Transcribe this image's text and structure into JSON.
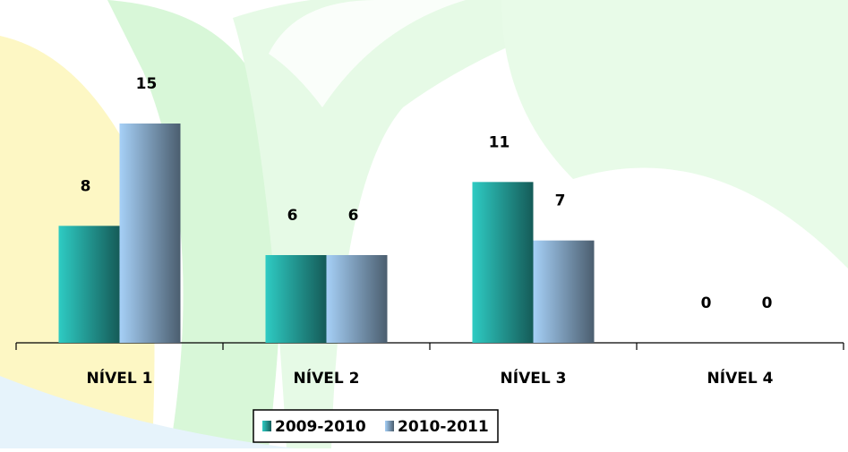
{
  "chart_data": {
    "type": "bar",
    "categories": [
      "NÍVEL 1",
      "NÍVEL 2",
      "NÍVEL 3",
      "NÍVEL 4"
    ],
    "series": [
      {
        "name": "2009-2010",
        "color": "#2ecbc3",
        "values": [
          8,
          6,
          11,
          0
        ]
      },
      {
        "name": "2010-2011",
        "color": "#a6d0f7",
        "values": [
          15,
          6,
          7,
          0
        ]
      }
    ],
    "legend": "bottom"
  }
}
